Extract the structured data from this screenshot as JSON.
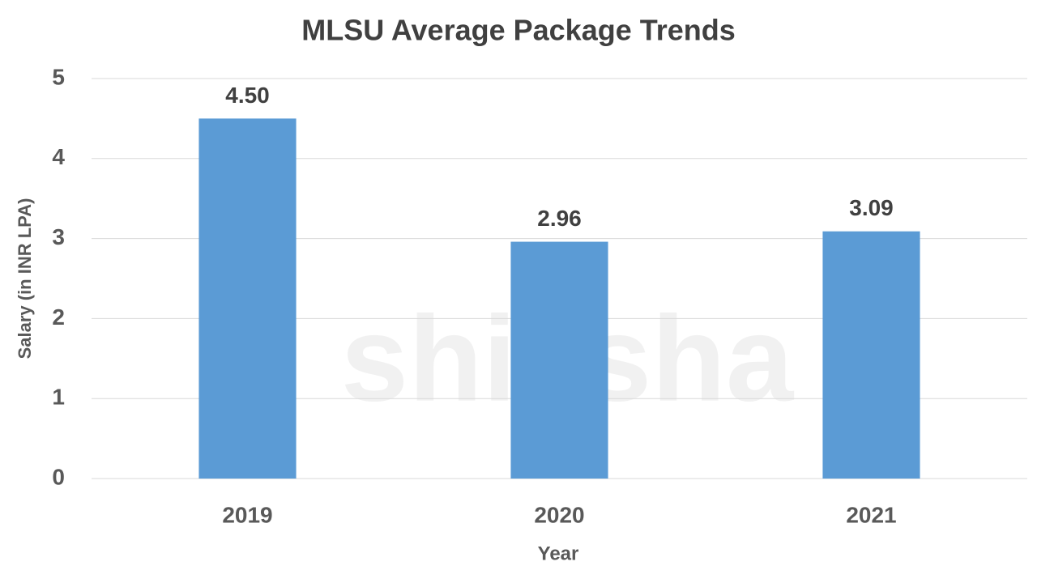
{
  "chart_data": {
    "type": "bar",
    "title": "MLSU Average Package Trends",
    "x_label": "Year",
    "y_label": "Salary (in INR LPA)",
    "categories": [
      "2019",
      "2020",
      "2021"
    ],
    "values": [
      4.5,
      2.96,
      3.09
    ],
    "value_labels": [
      "4.50",
      "2.96",
      "3.09"
    ],
    "color": "#5b9bd5",
    "ylim": [
      0,
      5
    ],
    "yticks": [
      0,
      1,
      2,
      3,
      4,
      5
    ],
    "grid": true,
    "watermark": "shiksha"
  }
}
